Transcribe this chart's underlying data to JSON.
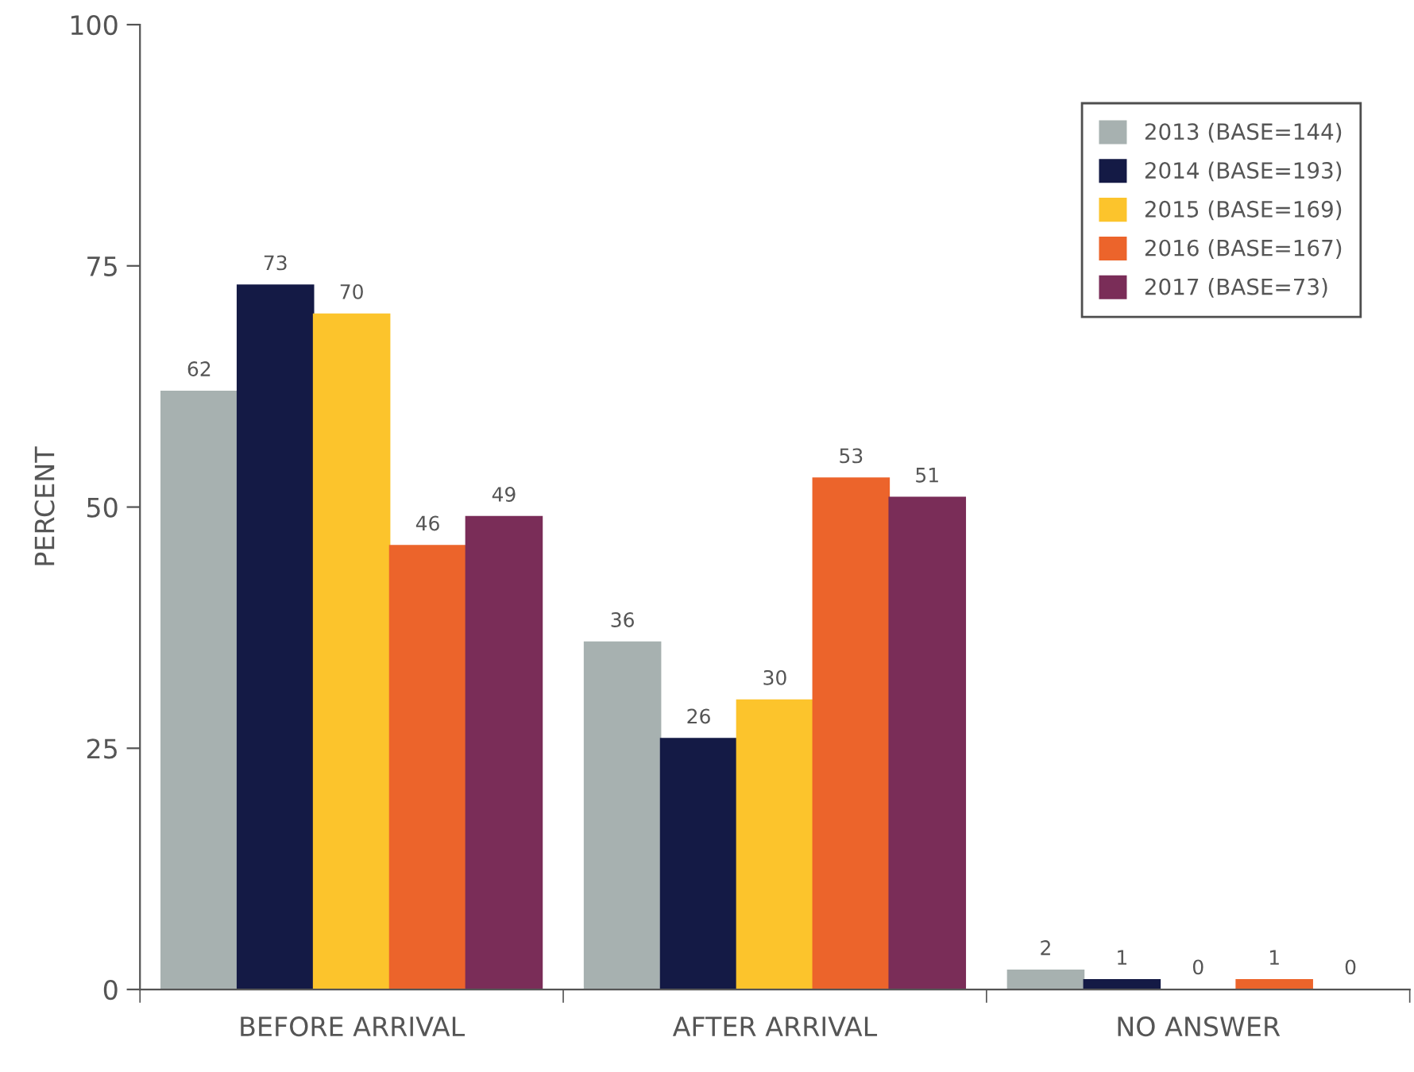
{
  "chart_data": {
    "type": "bar",
    "ylabel": "PERCENT",
    "categories": [
      "BEFORE ARRIVAL",
      "AFTER ARRIVAL",
      "NO ANSWER"
    ],
    "series": [
      {
        "name": "2013 (BASE=144)",
        "color": "#a7b1b0",
        "values": [
          62,
          36,
          2
        ]
      },
      {
        "name": "2014 (BASE=193)",
        "color": "#141a45",
        "values": [
          73,
          26,
          1
        ]
      },
      {
        "name": "2015 (BASE=169)",
        "color": "#fcc42c",
        "values": [
          70,
          30,
          0
        ]
      },
      {
        "name": "2016 (BASE=167)",
        "color": "#ec642b",
        "values": [
          46,
          53,
          1
        ]
      },
      {
        "name": "2017 (BASE=73)",
        "color": "#7a2d58",
        "values": [
          49,
          51,
          0
        ],
        "value_labels": [
          "49",
          "51",
          "0"
        ]
      }
    ],
    "ylim": [
      0,
      100
    ],
    "yticks": [
      0,
      25,
      50,
      75,
      100
    ],
    "grid": false,
    "legend": "top right",
    "data_labels": true
  }
}
